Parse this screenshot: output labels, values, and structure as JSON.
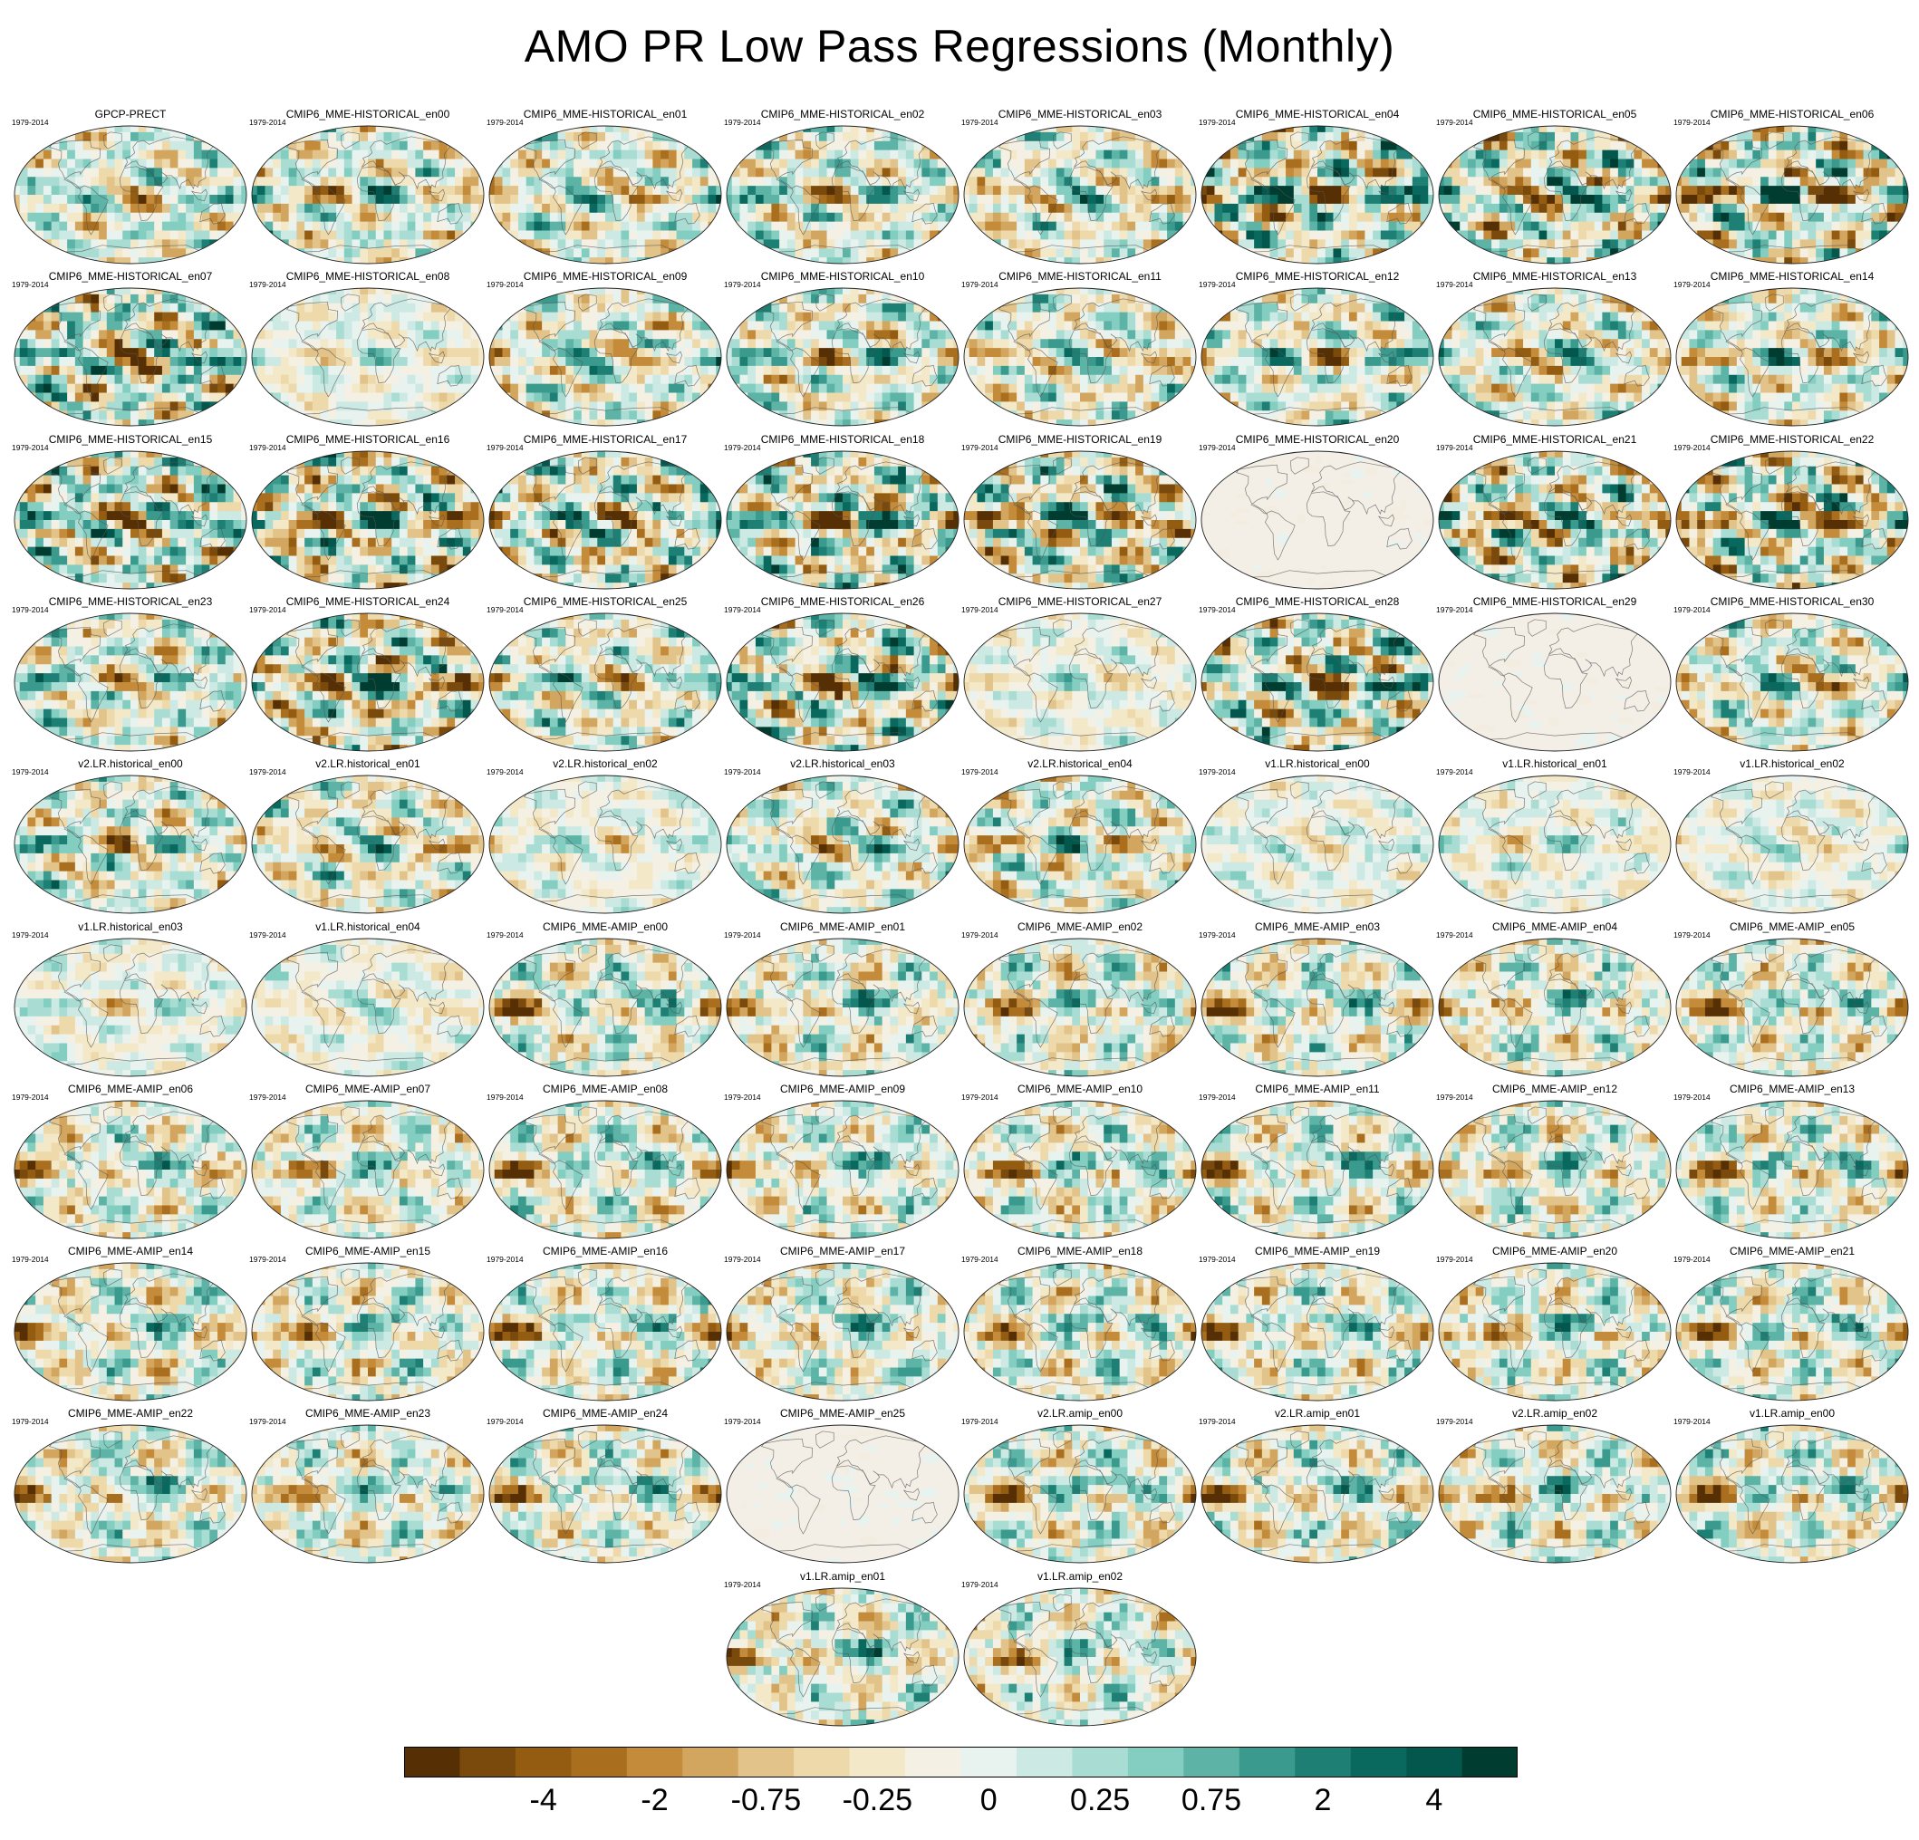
{
  "title": "AMO PR Low Pass Regressions (Monthly)",
  "period": "1979-2014",
  "panels": [
    {
      "title": "GPCP-PRECT",
      "state": "obs"
    },
    {
      "title": "CMIP6_MME-HISTORICAL_en00",
      "state": "moderate"
    },
    {
      "title": "CMIP6_MME-HISTORICAL_en01",
      "state": "moderate"
    },
    {
      "title": "CMIP6_MME-HISTORICAL_en02",
      "state": "moderate"
    },
    {
      "title": "CMIP6_MME-HISTORICAL_en03",
      "state": "moderate"
    },
    {
      "title": "CMIP6_MME-HISTORICAL_en04",
      "state": "strong"
    },
    {
      "title": "CMIP6_MME-HISTORICAL_en05",
      "state": "strong"
    },
    {
      "title": "CMIP6_MME-HISTORICAL_en06",
      "state": "strong"
    },
    {
      "title": "CMIP6_MME-HISTORICAL_en07",
      "state": "strong"
    },
    {
      "title": "CMIP6_MME-HISTORICAL_en08",
      "state": "weak"
    },
    {
      "title": "CMIP6_MME-HISTORICAL_en09",
      "state": "moderate"
    },
    {
      "title": "CMIP6_MME-HISTORICAL_en10",
      "state": "moderate"
    },
    {
      "title": "CMIP6_MME-HISTORICAL_en11",
      "state": "moderate"
    },
    {
      "title": "CMIP6_MME-HISTORICAL_en12",
      "state": "moderate"
    },
    {
      "title": "CMIP6_MME-HISTORICAL_en13",
      "state": "moderate"
    },
    {
      "title": "CMIP6_MME-HISTORICAL_en14",
      "state": "moderate"
    },
    {
      "title": "CMIP6_MME-HISTORICAL_en15",
      "state": "strong"
    },
    {
      "title": "CMIP6_MME-HISTORICAL_en16",
      "state": "strong"
    },
    {
      "title": "CMIP6_MME-HISTORICAL_en17",
      "state": "strong"
    },
    {
      "title": "CMIP6_MME-HISTORICAL_en18",
      "state": "strong"
    },
    {
      "title": "CMIP6_MME-HISTORICAL_en19",
      "state": "strong"
    },
    {
      "title": "CMIP6_MME-HISTORICAL_en20",
      "state": "blank"
    },
    {
      "title": "CMIP6_MME-HISTORICAL_en21",
      "state": "strong"
    },
    {
      "title": "CMIP6_MME-HISTORICAL_en22",
      "state": "strong"
    },
    {
      "title": "CMIP6_MME-HISTORICAL_en23",
      "state": "moderate"
    },
    {
      "title": "CMIP6_MME-HISTORICAL_en24",
      "state": "strong"
    },
    {
      "title": "CMIP6_MME-HISTORICAL_en25",
      "state": "moderate"
    },
    {
      "title": "CMIP6_MME-HISTORICAL_en26",
      "state": "strong"
    },
    {
      "title": "CMIP6_MME-HISTORICAL_en27",
      "state": "weak"
    },
    {
      "title": "CMIP6_MME-HISTORICAL_en28",
      "state": "strong"
    },
    {
      "title": "CMIP6_MME-HISTORICAL_en29",
      "state": "blank"
    },
    {
      "title": "CMIP6_MME-HISTORICAL_en30",
      "state": "moderate"
    },
    {
      "title": "v2.LR.historical_en00",
      "state": "moderate"
    },
    {
      "title": "v2.LR.historical_en01",
      "state": "moderate"
    },
    {
      "title": "v2.LR.historical_en02",
      "state": "weak"
    },
    {
      "title": "v2.LR.historical_en03",
      "state": "moderate"
    },
    {
      "title": "v2.LR.historical_en04",
      "state": "moderate"
    },
    {
      "title": "v1.LR.historical_en00",
      "state": "weak"
    },
    {
      "title": "v1.LR.historical_en01",
      "state": "weak"
    },
    {
      "title": "v1.LR.historical_en02",
      "state": "weak"
    },
    {
      "title": "v1.LR.historical_en03",
      "state": "weak"
    },
    {
      "title": "v1.LR.historical_en04",
      "state": "weak"
    },
    {
      "title": "CMIP6_MME-AMIP_en00",
      "state": "amip"
    },
    {
      "title": "CMIP6_MME-AMIP_en01",
      "state": "amip"
    },
    {
      "title": "CMIP6_MME-AMIP_en02",
      "state": "amip"
    },
    {
      "title": "CMIP6_MME-AMIP_en03",
      "state": "amip"
    },
    {
      "title": "CMIP6_MME-AMIP_en04",
      "state": "amip"
    },
    {
      "title": "CMIP6_MME-AMIP_en05",
      "state": "amip"
    },
    {
      "title": "CMIP6_MME-AMIP_en06",
      "state": "amip"
    },
    {
      "title": "CMIP6_MME-AMIP_en07",
      "state": "amip"
    },
    {
      "title": "CMIP6_MME-AMIP_en08",
      "state": "amip"
    },
    {
      "title": "CMIP6_MME-AMIP_en09",
      "state": "amip"
    },
    {
      "title": "CMIP6_MME-AMIP_en10",
      "state": "amip"
    },
    {
      "title": "CMIP6_MME-AMIP_en11",
      "state": "amip"
    },
    {
      "title": "CMIP6_MME-AMIP_en12",
      "state": "amip"
    },
    {
      "title": "CMIP6_MME-AMIP_en13",
      "state": "amip"
    },
    {
      "title": "CMIP6_MME-AMIP_en14",
      "state": "amip"
    },
    {
      "title": "CMIP6_MME-AMIP_en15",
      "state": "amip"
    },
    {
      "title": "CMIP6_MME-AMIP_en16",
      "state": "amip"
    },
    {
      "title": "CMIP6_MME-AMIP_en17",
      "state": "amip"
    },
    {
      "title": "CMIP6_MME-AMIP_en18",
      "state": "amip"
    },
    {
      "title": "CMIP6_MME-AMIP_en19",
      "state": "amip"
    },
    {
      "title": "CMIP6_MME-AMIP_en20",
      "state": "amip"
    },
    {
      "title": "CMIP6_MME-AMIP_en21",
      "state": "amip"
    },
    {
      "title": "CMIP6_MME-AMIP_en22",
      "state": "amip"
    },
    {
      "title": "CMIP6_MME-AMIP_en23",
      "state": "amip"
    },
    {
      "title": "CMIP6_MME-AMIP_en24",
      "state": "amip"
    },
    {
      "title": "CMIP6_MME-AMIP_en25",
      "state": "blank"
    },
    {
      "title": "v2.LR.amip_en00",
      "state": "amip"
    },
    {
      "title": "v2.LR.amip_en01",
      "state": "amip"
    },
    {
      "title": "v2.LR.amip_en02",
      "state": "amip"
    },
    {
      "title": "v1.LR.amip_en00",
      "state": "amip"
    },
    {
      "title": "v1.LR.amip_en01",
      "state": "amip"
    },
    {
      "title": "v1.LR.amip_en02",
      "state": "amip"
    }
  ],
  "colorbar": {
    "colors": [
      "#563004",
      "#7a4a0c",
      "#945c11",
      "#a96f1f",
      "#c38b3a",
      "#d3a660",
      "#e2c389",
      "#eed9ab",
      "#f3e8c8",
      "#f5f0e4",
      "#e8f3f0",
      "#cce9e4",
      "#a9ddd4",
      "#83cec0",
      "#5db4a6",
      "#3b9a8e",
      "#1e8075",
      "#09695e",
      "#04574d",
      "#003c30"
    ],
    "tick_labels": [
      "-4",
      "-2",
      "-0.75",
      "-0.25",
      "0",
      "0.25",
      "0.75",
      "2",
      "4"
    ],
    "tick_boundaries": [
      2,
      4,
      6,
      8,
      10,
      12,
      14,
      16,
      18
    ]
  }
}
